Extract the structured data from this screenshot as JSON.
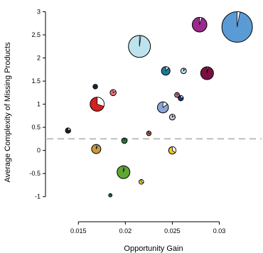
{
  "chart_data": {
    "type": "scatter",
    "subtype": "bubble-pie",
    "xlabel": "Opportunity Gain",
    "ylabel": "Average Complexity of Missing Products",
    "xlim": [
      0.0115,
      0.0345
    ],
    "ylim": [
      -1.45,
      3.1
    ],
    "x_ticks": [
      0.015,
      0.02,
      0.025,
      0.03
    ],
    "x_tick_labels": [
      "0.015",
      "0.02",
      "0.025",
      "0.03"
    ],
    "y_ticks": [
      -1,
      -0.5,
      0,
      0.5,
      1,
      1.5,
      2,
      2.5,
      3
    ],
    "y_tick_labels": [
      "-1",
      "-0.5",
      "0",
      "0.5",
      "1",
      "1.5",
      "2",
      "2.5",
      "3"
    ],
    "reference_line": {
      "y": 0.25,
      "style": "dashed",
      "color": "#aaaaaa"
    },
    "grid": false,
    "legend": "none",
    "points": [
      {
        "x": 0.0319,
        "y": 2.67,
        "size": 5.0,
        "share": 0.03,
        "color": "#5b9bd5"
      },
      {
        "x": 0.0279,
        "y": 2.72,
        "size": 2.4,
        "share": 0.05,
        "color": "#9b2a8c"
      },
      {
        "x": 0.0215,
        "y": 2.25,
        "size": 3.6,
        "share": 0.02,
        "color": "#bde3ee"
      },
      {
        "x": 0.0287,
        "y": 1.67,
        "size": 2.1,
        "share": 0.03,
        "color": "#7a1040"
      },
      {
        "x": 0.0243,
        "y": 1.72,
        "size": 1.4,
        "share": 0.12,
        "color": "#1f7a9a"
      },
      {
        "x": 0.0262,
        "y": 1.72,
        "size": 0.9,
        "share": 0.1,
        "color": "#bde3ee"
      },
      {
        "x": 0.0168,
        "y": 1.38,
        "size": 0.75,
        "share": 0.1,
        "color": "#1a2a48"
      },
      {
        "x": 0.0187,
        "y": 1.25,
        "size": 1.0,
        "share": 0.15,
        "color": "#e8707a"
      },
      {
        "x": 0.017,
        "y": 1.0,
        "size": 2.3,
        "share": 0.3,
        "color": "#d42020"
      },
      {
        "x": 0.0255,
        "y": 1.2,
        "size": 0.8,
        "share": 0.15,
        "color": "#d07080"
      },
      {
        "x": 0.0259,
        "y": 1.13,
        "size": 0.85,
        "share": 0.2,
        "color": "#1a3a90"
      },
      {
        "x": 0.024,
        "y": 0.93,
        "size": 1.8,
        "share": 0.15,
        "color": "#8aa4d8"
      },
      {
        "x": 0.025,
        "y": 0.72,
        "size": 0.95,
        "share": 0.15,
        "color": "#c9c2e0"
      },
      {
        "x": 0.0139,
        "y": 0.43,
        "size": 0.85,
        "share": 0.2,
        "color": "#2a1e2a"
      },
      {
        "x": 0.0225,
        "y": 0.37,
        "size": 0.75,
        "share": 0.15,
        "color": "#c05040"
      },
      {
        "x": 0.0199,
        "y": 0.21,
        "size": 0.9,
        "share": 0.0,
        "color": "#2a7a3a"
      },
      {
        "x": 0.0169,
        "y": 0.03,
        "size": 1.5,
        "share": 0.06,
        "color": "#c79a3f"
      },
      {
        "x": 0.025,
        "y": 0.0,
        "size": 1.2,
        "share": 0.35,
        "color": "#f5c518"
      },
      {
        "x": 0.0198,
        "y": -0.47,
        "size": 2.1,
        "share": 0.04,
        "color": "#5fa830"
      },
      {
        "x": 0.0217,
        "y": -0.68,
        "size": 0.75,
        "share": 0.3,
        "color": "#e8de2a"
      },
      {
        "x": 0.0184,
        "y": -0.97,
        "size": 0.55,
        "share": 0.0,
        "color": "#2a7a3a"
      }
    ]
  }
}
